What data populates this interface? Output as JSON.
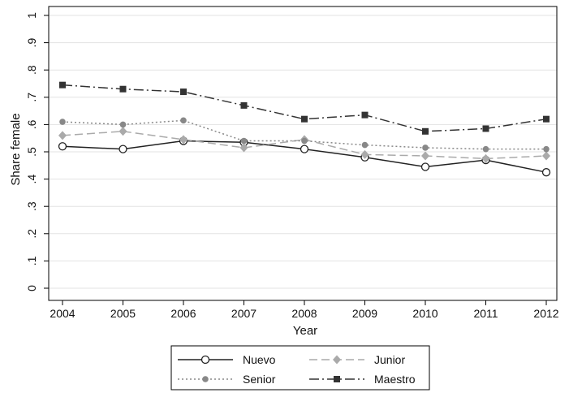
{
  "chart_data": {
    "type": "line",
    "xlabel": "Year",
    "ylabel": "Share female",
    "ylim": [
      0,
      1
    ],
    "xlim": [
      2004,
      2012
    ],
    "grid": "horizontal",
    "x_ticks": [
      "2004",
      "2005",
      "2006",
      "2007",
      "2008",
      "2009",
      "2010",
      "2011",
      "2012"
    ],
    "y_ticks": [
      "0",
      ".1",
      ".2",
      ".3",
      ".4",
      ".5",
      ".6",
      ".7",
      ".8",
      ".9",
      "1"
    ],
    "x": [
      2004,
      2005,
      2006,
      2007,
      2008,
      2009,
      2010,
      2011,
      2012
    ],
    "legend_position": "bottom",
    "series": [
      {
        "name": "Nuevo",
        "color": "#222222",
        "line": "solid",
        "marker": "hollow-circle",
        "values": [
          0.52,
          0.51,
          0.54,
          0.535,
          0.51,
          0.48,
          0.445,
          0.47,
          0.425
        ]
      },
      {
        "name": "Junior",
        "color": "#aaaaaa",
        "line": "dashed",
        "marker": "diamond",
        "values": [
          0.56,
          0.575,
          0.545,
          0.515,
          0.545,
          0.49,
          0.485,
          0.475,
          0.485
        ]
      },
      {
        "name": "Senior",
        "color": "#888888",
        "line": "dotted",
        "marker": "circle",
        "values": [
          0.61,
          0.6,
          0.615,
          0.54,
          0.54,
          0.525,
          0.515,
          0.51,
          0.51
        ]
      },
      {
        "name": "Maestro",
        "color": "#333333",
        "line": "dashdot",
        "marker": "square",
        "values": [
          0.745,
          0.73,
          0.72,
          0.67,
          0.62,
          0.635,
          0.575,
          0.585,
          0.62
        ]
      }
    ]
  }
}
